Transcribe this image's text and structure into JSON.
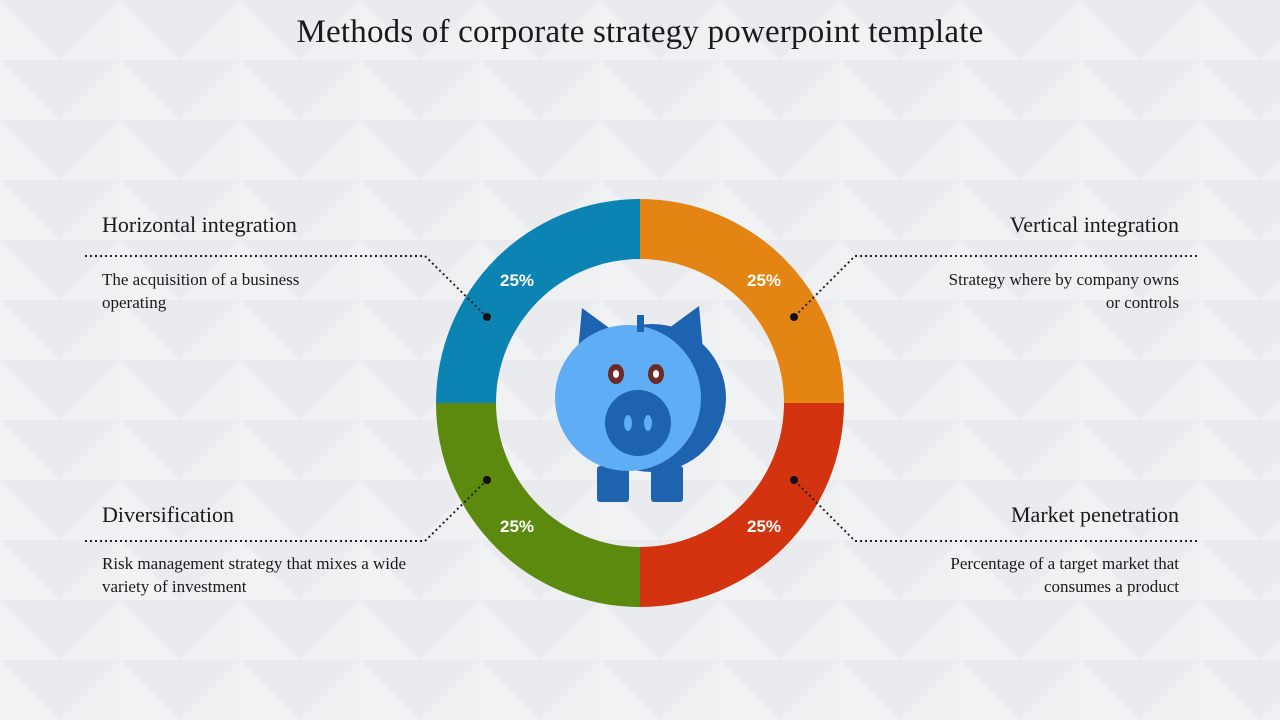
{
  "title": "Methods of corporate strategy powerpoint template",
  "items": [
    {
      "title": "Horizontal integration",
      "description": "The acquisition of a business operating",
      "value": "25%",
      "color": "#0b84b4"
    },
    {
      "title": "Vertical integration",
      "description": "Strategy where by company owns or controls",
      "value": "25%",
      "color": "#e48513"
    },
    {
      "title": "Diversification",
      "description": "Risk management strategy that mixes a wide variety of investment",
      "value": "25%",
      "color": "#5b8a0e"
    },
    {
      "title": "Market penetration",
      "description": "Percentage of a target market that consumes a product",
      "value": "25%",
      "color": "#d3330f"
    }
  ],
  "center_icon": "piggy-bank-icon",
  "colors": {
    "background": "#eef0f2",
    "pig_light": "#5fadf5",
    "pig_dark": "#1e63b0"
  }
}
